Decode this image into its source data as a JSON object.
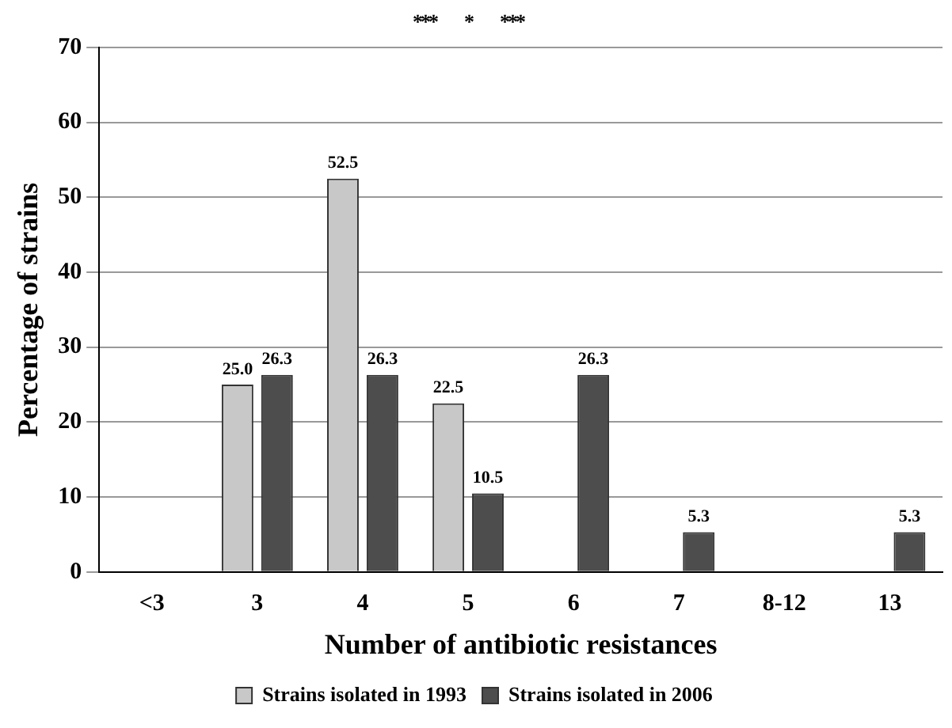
{
  "chart_data": {
    "type": "bar",
    "xlabel": "Number of antibiotic resistances",
    "ylabel": "Percentage of strains",
    "categories": [
      "<3",
      "3",
      "4",
      "5",
      "6",
      "7",
      "8-12",
      "13"
    ],
    "series": [
      {
        "name": "Strains isolated in 1993",
        "color": "#c8c8c8",
        "values": [
          0,
          25.0,
          52.5,
          22.5,
          0,
          0,
          0,
          0
        ],
        "value_labels": [
          null,
          "25.0",
          "52.5",
          "22.5",
          null,
          null,
          null,
          null
        ]
      },
      {
        "name": "Strains isolated in 2006",
        "color": "#4d4d4d",
        "values": [
          0,
          26.3,
          26.3,
          10.5,
          26.3,
          5.3,
          0,
          5.3
        ],
        "value_labels": [
          null,
          "26.3",
          "26.3",
          "10.5",
          "26.3",
          "5.3",
          null,
          "5.3"
        ]
      }
    ],
    "ylim": [
      0,
      70
    ],
    "yticks": [
      0,
      10,
      20,
      30,
      40,
      50,
      60,
      70
    ],
    "grid": "y",
    "legend": "bottom",
    "annotations": [
      "***          *          ***"
    ]
  }
}
